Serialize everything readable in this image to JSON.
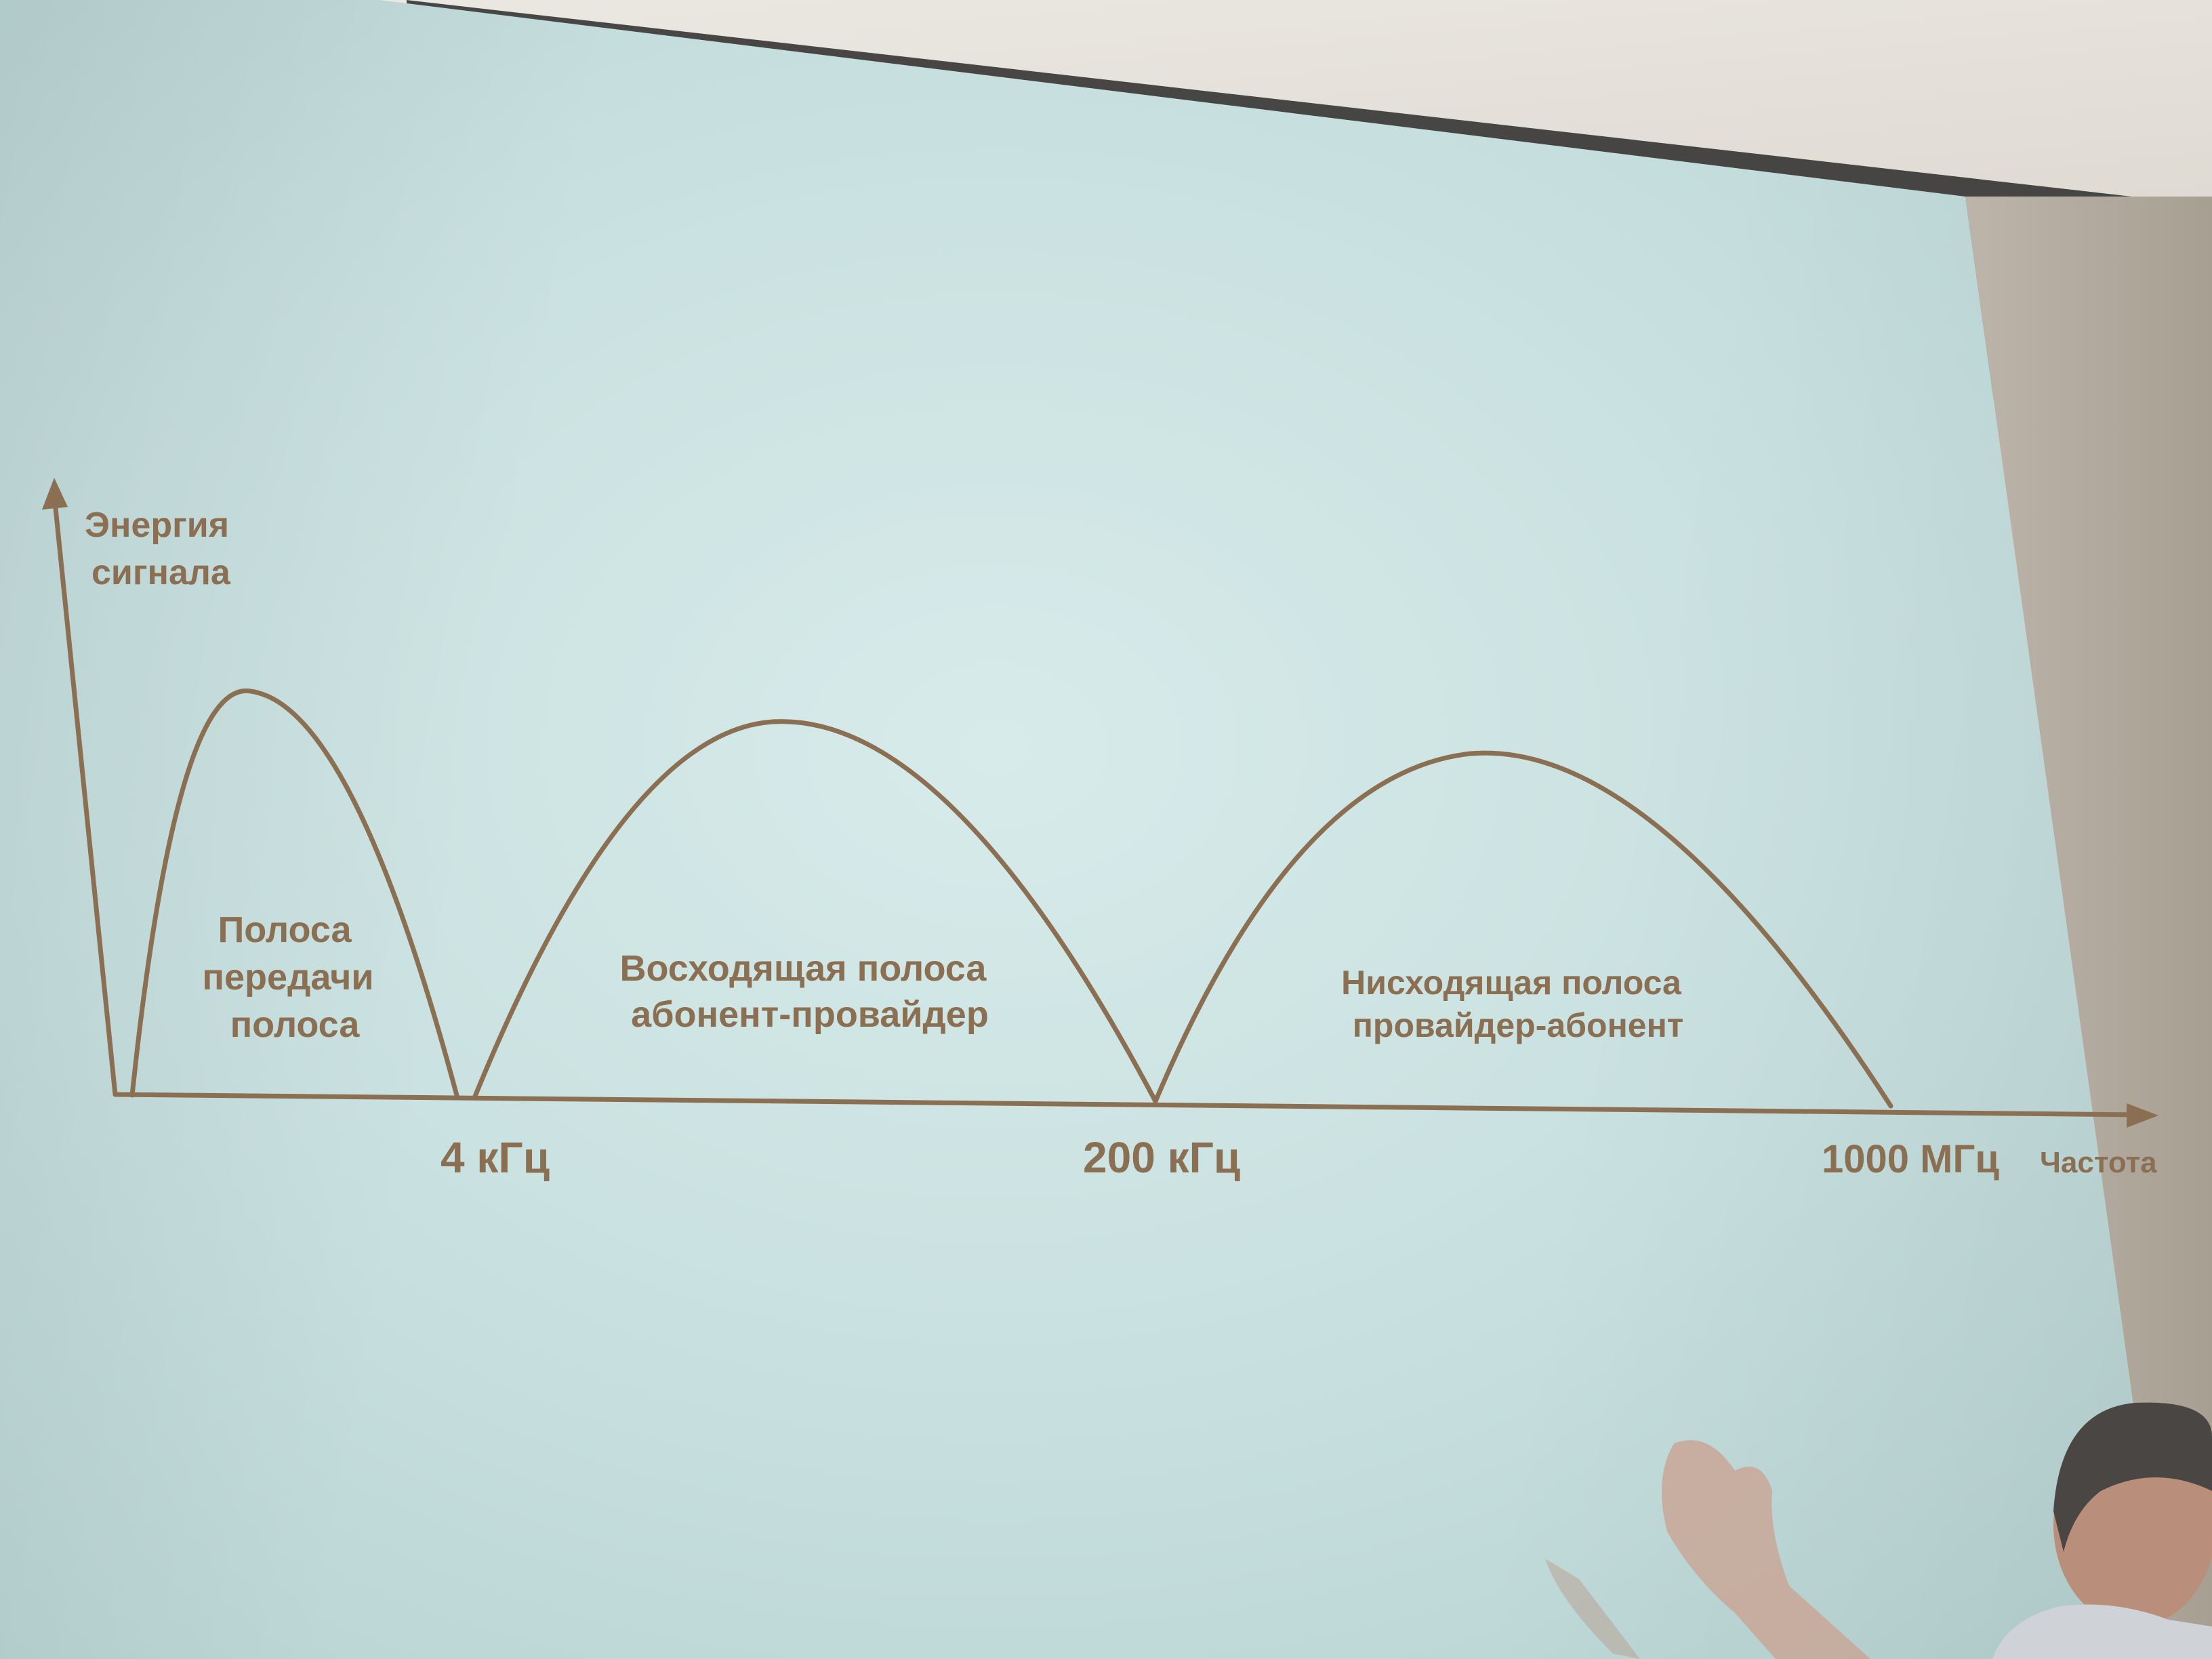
{
  "y_axis_label_line1": "Энергия",
  "y_axis_label_line2": "сигнала",
  "x_axis_label": "Частота",
  "ticks": [
    {
      "label": "4 кГц"
    },
    {
      "label": "200 кГц"
    },
    {
      "label": "1000 МГц"
    }
  ],
  "bands": [
    {
      "lines": [
        "Полоса",
        "передачи",
        "полоса"
      ]
    },
    {
      "lines": [
        "Восходящая полоса",
        "абонент-провайдер"
      ]
    },
    {
      "lines": [
        "Нисходящая полоса",
        "провайдер-абонент"
      ]
    }
  ],
  "colors": {
    "ink": "#8a6f52",
    "screen": "#c9e1e0",
    "wall": "#b9b1a6"
  }
}
